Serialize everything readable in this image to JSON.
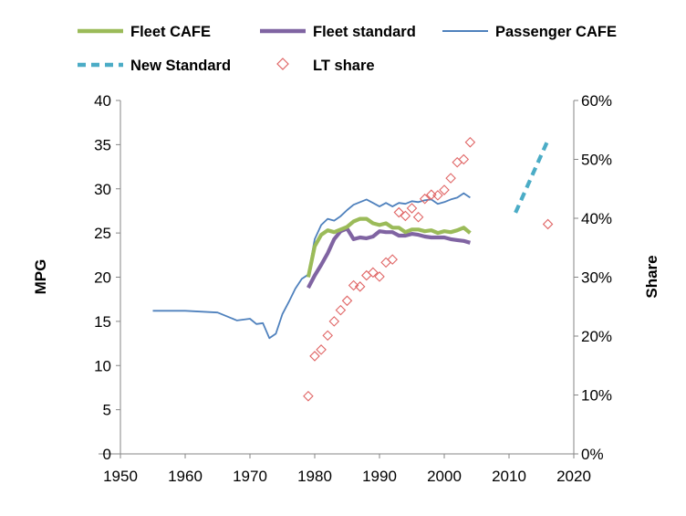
{
  "chart_data": {
    "type": "line",
    "xlabel": "",
    "ylabel": "MPG",
    "y2label": "Share",
    "xlim": [
      1950,
      2020
    ],
    "ylim": [
      0,
      40
    ],
    "y2lim": [
      0,
      0.6
    ],
    "x_ticks": [
      1950,
      1960,
      1970,
      1980,
      1990,
      2000,
      2010,
      2020
    ],
    "y_ticks": [
      0,
      5,
      10,
      15,
      20,
      25,
      30,
      35,
      40
    ],
    "y2_ticks": [
      "0%",
      "10%",
      "20%",
      "30%",
      "40%",
      "50%",
      "60%"
    ],
    "legend_placement": "top",
    "grid": false,
    "series": [
      {
        "name": "Fleet CAFE",
        "axis": "left",
        "color": "#9BBB59",
        "style": "solid-thick",
        "x": [
          1979,
          1980,
          1981,
          1982,
          1983,
          1984,
          1985,
          1986,
          1987,
          1988,
          1989,
          1990,
          1991,
          1992,
          1993,
          1994,
          1995,
          1996,
          1997,
          1998,
          1999,
          2000,
          2001,
          2002,
          2003,
          2004
        ],
        "y": [
          20.0,
          23.5,
          24.8,
          25.3,
          25.1,
          25.4,
          25.7,
          26.3,
          26.6,
          26.6,
          26.1,
          25.9,
          26.1,
          25.6,
          25.6,
          25.1,
          25.4,
          25.4,
          25.2,
          25.3,
          25.0,
          25.2,
          25.1,
          25.3,
          25.6,
          25.0
        ]
      },
      {
        "name": "Fleet standard",
        "axis": "left",
        "color": "#8064A2",
        "style": "solid-thick",
        "x": [
          1979,
          1980,
          1981,
          1982,
          1983,
          1984,
          1985,
          1986,
          1987,
          1988,
          1989,
          1990,
          1991,
          1992,
          1993,
          1994,
          1995,
          1996,
          1997,
          1998,
          1999,
          2000,
          2001,
          2002,
          2003,
          2004
        ],
        "y": [
          18.8,
          20.2,
          21.4,
          22.7,
          24.3,
          25.2,
          25.5,
          24.3,
          24.5,
          24.4,
          24.6,
          25.2,
          25.1,
          25.1,
          24.7,
          24.7,
          24.9,
          24.8,
          24.6,
          24.5,
          24.5,
          24.5,
          24.3,
          24.2,
          24.1,
          23.9
        ]
      },
      {
        "name": "Passenger CAFE",
        "axis": "left",
        "color": "#4F81BD",
        "style": "solid-thin",
        "x": [
          1955,
          1960,
          1965,
          1968,
          1970,
          1971,
          1972,
          1973,
          1974,
          1975,
          1976,
          1977,
          1978,
          1979,
          1980,
          1981,
          1982,
          1983,
          1984,
          1985,
          1986,
          1987,
          1988,
          1989,
          1990,
          1991,
          1992,
          1993,
          1994,
          1995,
          1996,
          1997,
          1998,
          1999,
          2000,
          2001,
          2002,
          2003,
          2004
        ],
        "y": [
          16.2,
          16.2,
          16.0,
          15.1,
          15.3,
          14.7,
          14.8,
          13.1,
          13.6,
          15.8,
          17.2,
          18.7,
          19.8,
          20.3,
          24.3,
          25.9,
          26.6,
          26.4,
          26.9,
          27.6,
          28.2,
          28.5,
          28.8,
          28.4,
          28.0,
          28.4,
          28.0,
          28.4,
          28.3,
          28.6,
          28.5,
          28.7,
          28.8,
          28.3,
          28.5,
          28.8,
          29.0,
          29.5,
          29.0
        ]
      },
      {
        "name": "New Standard",
        "axis": "left",
        "color": "#4BACC6",
        "style": "dashed-thick",
        "x": [
          2011,
          2016
        ],
        "y": [
          27.3,
          35.5
        ]
      }
    ],
    "scatter": {
      "name": "LT share",
      "axis": "right",
      "color": "#E06666",
      "marker": "diamond-open",
      "x": [
        1979,
        1980,
        1981,
        1982,
        1983,
        1984,
        1985,
        1986,
        1987,
        1988,
        1989,
        1990,
        1991,
        1992,
        1993,
        1994,
        1995,
        1996,
        1997,
        1998,
        1999,
        2000,
        2001,
        2002,
        2003,
        2004,
        2016
      ],
      "y": [
        0.098,
        0.166,
        0.177,
        0.201,
        0.225,
        0.244,
        0.26,
        0.286,
        0.284,
        0.303,
        0.308,
        0.301,
        0.325,
        0.33,
        0.41,
        0.404,
        0.417,
        0.402,
        0.433,
        0.44,
        0.439,
        0.448,
        0.468,
        0.495,
        0.5,
        0.529,
        0.39
      ]
    }
  }
}
